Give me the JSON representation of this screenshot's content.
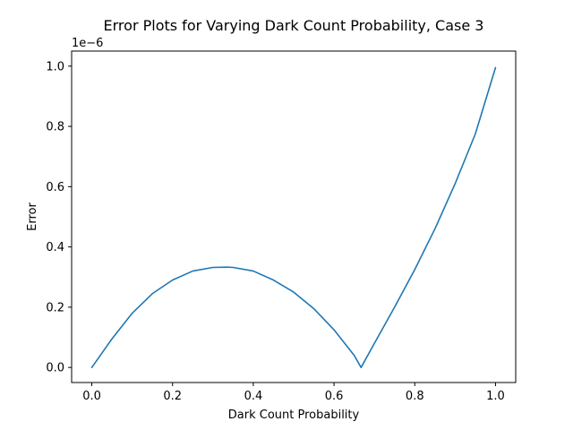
{
  "chart_data": {
    "type": "line",
    "title": "Error Plots for Varying Dark Count Probability, Case 3",
    "xlabel": "Dark Count Probability",
    "ylabel": "Error",
    "y_offset_text": "1e−6",
    "xlim": [
      -0.05,
      1.05
    ],
    "ylim": [
      -0.05,
      1.05
    ],
    "x_ticks": [
      0.0,
      0.2,
      0.4,
      0.6,
      0.8,
      1.0
    ],
    "x_tick_labels": [
      "0.0",
      "0.2",
      "0.4",
      "0.6",
      "0.8",
      "1.0"
    ],
    "y_ticks": [
      0.0,
      0.2,
      0.4,
      0.6,
      0.8,
      1.0
    ],
    "y_tick_labels": [
      "0.0",
      "0.2",
      "0.4",
      "0.6",
      "0.8",
      "1.0"
    ],
    "grid": false,
    "y_scale_note": "values in units of 1e-6",
    "series": [
      {
        "color": "#1f77b4",
        "x": [
          0.0,
          0.05,
          0.1,
          0.15,
          0.2,
          0.25,
          0.3,
          0.333,
          0.35,
          0.4,
          0.45,
          0.5,
          0.55,
          0.6,
          0.65,
          0.667,
          0.7,
          0.75,
          0.8,
          0.85,
          0.9,
          0.95,
          1.0
        ],
        "values": [
          0.0,
          0.095,
          0.18,
          0.245,
          0.29,
          0.32,
          0.332,
          0.333,
          0.332,
          0.32,
          0.29,
          0.25,
          0.195,
          0.125,
          0.04,
          0.0,
          0.08,
          0.2,
          0.325,
          0.46,
          0.61,
          0.775,
          0.995
        ]
      }
    ]
  }
}
